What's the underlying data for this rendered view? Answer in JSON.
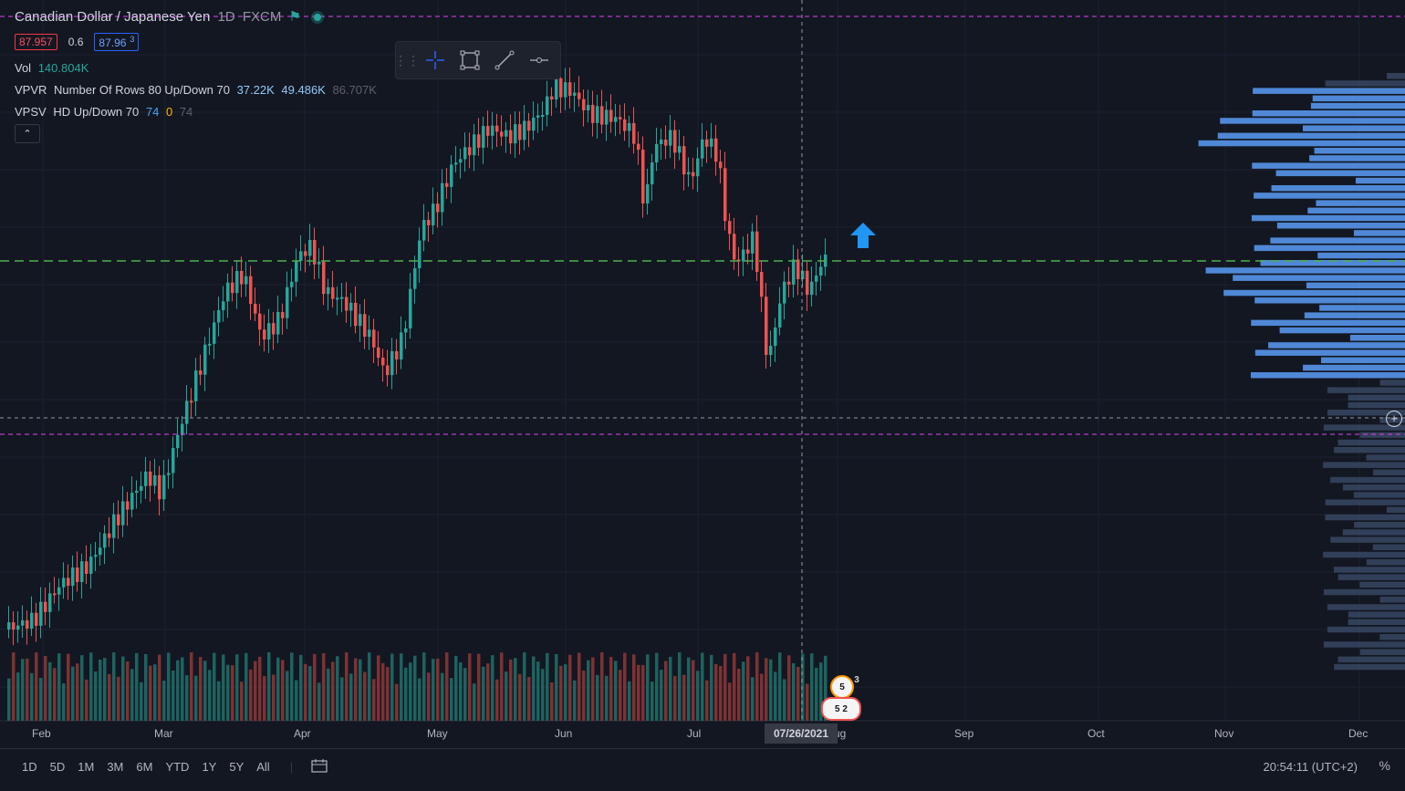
{
  "header": {
    "symbol_title": "Canadian Dollar / Japanese Yen",
    "interval": "1D",
    "exchange": "FXCM",
    "bid_price": "87.957",
    "spread": "0.6",
    "ask_price_main": "87.96",
    "ask_price_sup": "3"
  },
  "indicators": {
    "vol": {
      "label": "Vol",
      "value": "140.804K"
    },
    "vpvr": {
      "label": "VPVR",
      "params": "Number Of Rows 80 Up/Down 70",
      "up": "37.22K",
      "down": "49.486K",
      "total": "86.707K"
    },
    "vpsv": {
      "label": "VPSV",
      "params": "HD Up/Down 70",
      "v1": "74",
      "v2": "0",
      "v3": "74"
    }
  },
  "toolbar": {
    "crosshair_icon": "crosshair-icon",
    "rect_icon": "rectangle-icon",
    "line_icon": "trend-line-icon",
    "hline_icon": "horizontal-line-icon"
  },
  "time_axis": {
    "months": [
      "Feb",
      "Mar",
      "Apr",
      "May",
      "Jun",
      "Jul",
      "Aug",
      "Sep",
      "Oct",
      "Nov",
      "Dec"
    ],
    "crosshair_date": "07/26/2021"
  },
  "bottom_bar": {
    "ranges": [
      "1D",
      "5D",
      "1M",
      "3M",
      "6M",
      "YTD",
      "1Y",
      "5Y",
      "All"
    ],
    "clock": "20:54:11 (UTC+2)",
    "percent_label": "%"
  },
  "badges": {
    "earnings_top": "5",
    "earnings_top_count": "3",
    "earnings_bottom": "5",
    "earnings_bottom_count": "2"
  },
  "colors": {
    "up": "#26a69a",
    "down": "#ef5350",
    "bg": "#131722",
    "vp_up": "#5b9cf6",
    "vp_dim": "#3b4a66",
    "magenta": "#e040fb",
    "green_line": "#4caf50"
  }
}
